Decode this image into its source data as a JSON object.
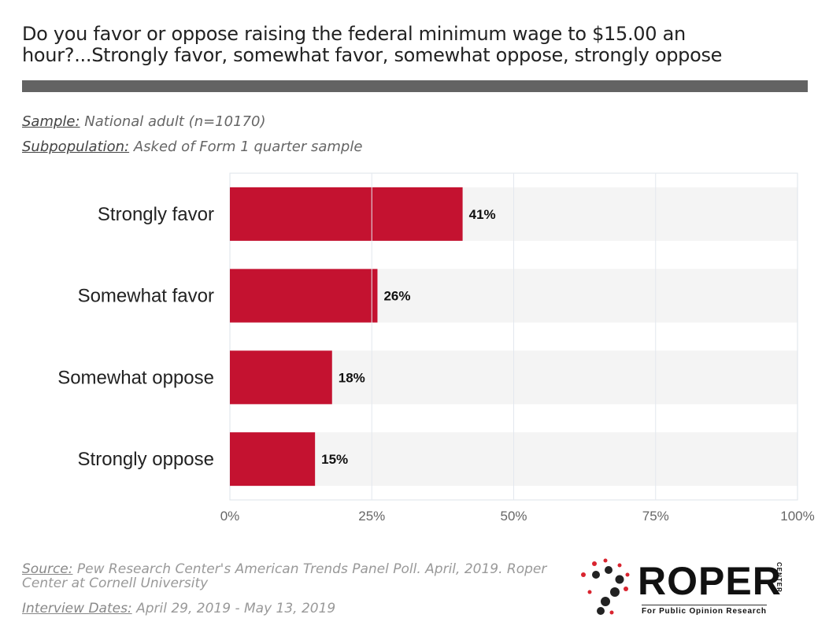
{
  "title": "Do you favor or oppose raising the federal minimum wage to $15.00 an hour?...Strongly favor, somewhat favor, somewhat oppose, strongly oppose",
  "sample": {
    "label": "Sample:",
    "value": "National adult (n=10170)"
  },
  "subpopulation": {
    "label": "Subpopulation:",
    "value": "Asked of Form 1 quarter sample"
  },
  "source": {
    "label": "Source:",
    "value": "Pew Research Center's American Trends Panel Poll. April, 2019. Roper Center at Cornell University"
  },
  "interview_dates": {
    "label": "Interview Dates:",
    "value": "April 29, 2019 - May 13, 2019"
  },
  "logo": {
    "word": "ROPER",
    "center": "CENTER",
    "tagline": "For Public Opinion Research"
  },
  "colors": {
    "bar": "#c41230",
    "band": "#f4f4f4",
    "rule": "#636363"
  },
  "chart_data": {
    "type": "bar",
    "orientation": "horizontal",
    "categories": [
      "Strongly favor",
      "Somewhat favor",
      "Somewhat oppose",
      "Strongly oppose"
    ],
    "values": [
      41,
      26,
      18,
      15
    ],
    "value_labels": [
      "41%",
      "26%",
      "18%",
      "15%"
    ],
    "xlim": [
      0,
      100
    ],
    "xticks": [
      0,
      25,
      50,
      75,
      100
    ],
    "xtick_labels": [
      "0%",
      "25%",
      "50%",
      "75%",
      "100%"
    ],
    "grid": true
  }
}
